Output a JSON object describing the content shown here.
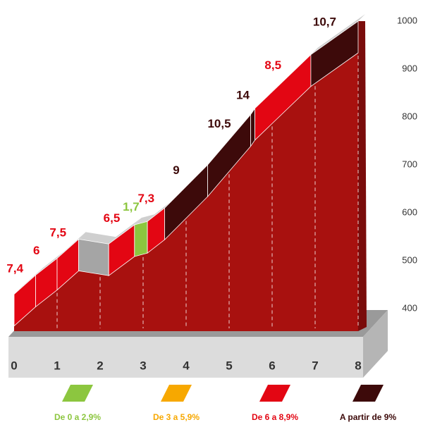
{
  "chart_data": {
    "type": "profile",
    "x": [
      0,
      0.5,
      1,
      1.5,
      2.2,
      2.8,
      3.1,
      3.5,
      4.5,
      5.5,
      5.6,
      6.9,
      8
    ],
    "y": [
      430,
      470,
      505,
      545,
      535,
      575,
      582,
      610,
      700,
      805,
      818,
      930,
      1000
    ],
    "segments": {
      "values": [
        7.4,
        6,
        7.5,
        null,
        6.5,
        1.7,
        7.3,
        9,
        10.5,
        14,
        8.5,
        10.7
      ],
      "value_labels": [
        "7,4",
        "6",
        "7,5",
        null,
        "6,5",
        "1,7",
        "7,3",
        "9",
        "10,5",
        "14",
        "8,5",
        "10,7"
      ],
      "colors": [
        "#e30613",
        "#e30613",
        "#e30613",
        "#a5a5a5",
        "#e30613",
        "#8cc63f",
        "#e30613",
        "#3d0a0a",
        "#3d0a0a",
        "#3d0a0a",
        "#e30613",
        "#3d0a0a"
      ]
    },
    "xlim": [
      0,
      8
    ],
    "xticks": [
      0,
      1,
      2,
      3,
      4,
      5,
      6,
      7,
      8
    ],
    "ylim": [
      400,
      1000
    ],
    "yticks": [
      400,
      500,
      600,
      700,
      800,
      900,
      1000
    ],
    "legend": [
      {
        "name": "De 0 a 2,9%",
        "color": "#8cc63f"
      },
      {
        "name": "De 3 a 5,9%",
        "color": "#f7a800"
      },
      {
        "name": "De 6 a 8,9%",
        "color": "#e30613"
      },
      {
        "name": "A partir de 9%",
        "color": "#3d0a0a"
      }
    ]
  }
}
